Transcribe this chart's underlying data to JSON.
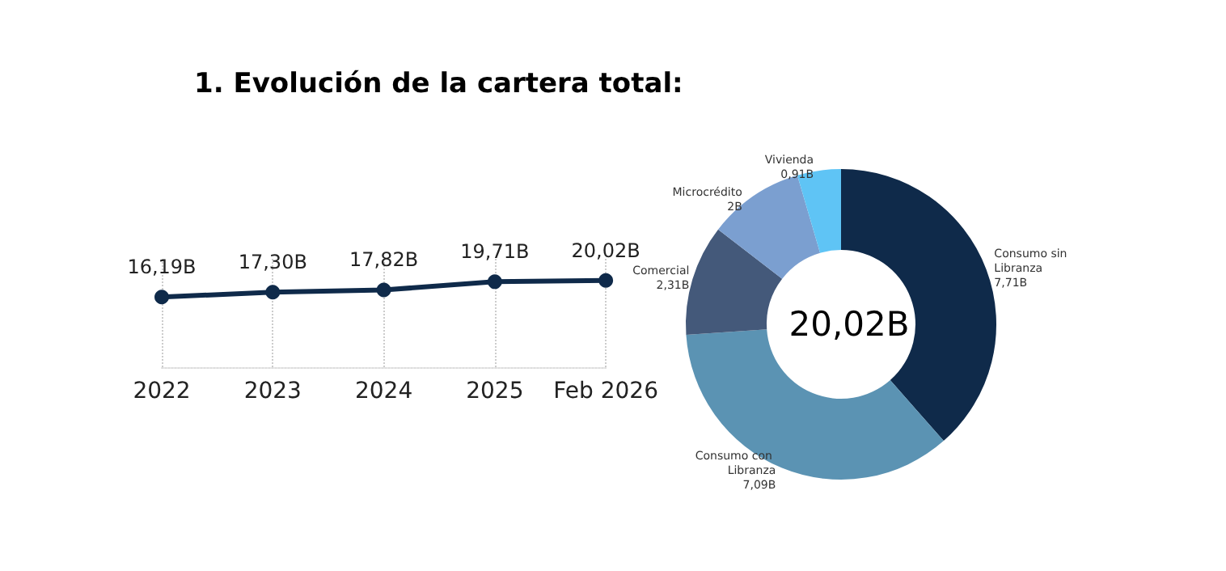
{
  "chart_data": [
    {
      "type": "line",
      "title": "1. Evolución de la cartera total:",
      "categories": [
        "2022",
        "2023",
        "2024",
        "2025",
        "Feb 2026"
      ],
      "series": [
        {
          "color": "#0f2a4a",
          "values": [
            16.19,
            17.3,
            17.82,
            19.71,
            20.02
          ],
          "value_labels": [
            "16,19B",
            "17,30B",
            "17,82B",
            "19,71B",
            "20,02B"
          ]
        }
      ],
      "marker": "circle",
      "grid": "x",
      "legend": false
    },
    {
      "type": "donut",
      "categories": [
        "Consumo sin Libranza",
        "Consumo con Libranza",
        "Comercial",
        "Microcrédito",
        "Vivienda"
      ],
      "values": [
        7.71,
        7.09,
        2.31,
        2,
        0.91
      ],
      "value_labels": [
        "7,71B",
        "7,09B",
        "2,31B",
        "2B",
        "0,91B"
      ],
      "colors": [
        "#0f2a4a",
        "#5b93b3",
        "#44597a",
        "#7b9fd0",
        "#5fc4f5"
      ],
      "annotations": [
        "20,02B"
      ],
      "legend": false
    }
  ]
}
